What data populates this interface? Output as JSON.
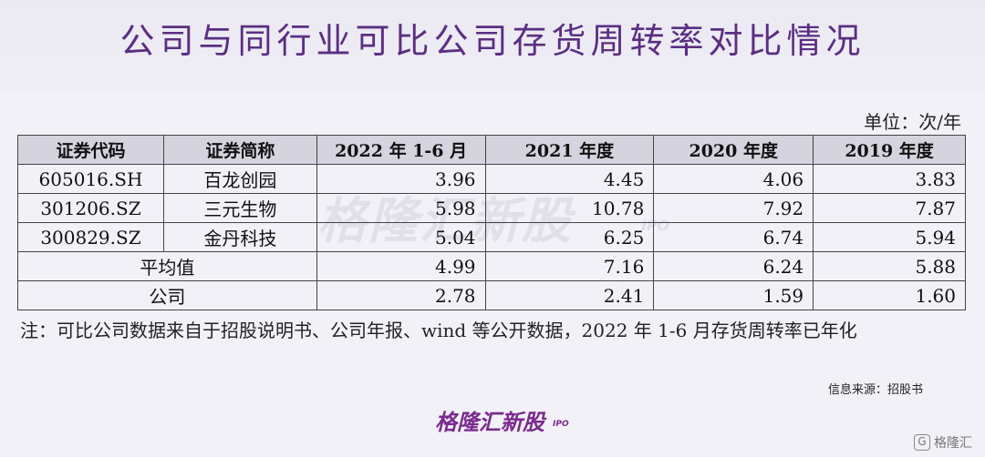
{
  "title": "公司与同行业可比公司存货周转率对比情况",
  "unit": "单位：次/年",
  "table": {
    "headers": [
      "证券代码",
      "证券简称",
      "2022 年 1-6 月",
      "2021 年度",
      "2020 年度",
      "2019 年度"
    ],
    "rows": [
      {
        "code": "605016.SH",
        "name": "百龙创园",
        "v1": "3.96",
        "v2": "4.45",
        "v3": "4.06",
        "v4": "3.83"
      },
      {
        "code": "301206.SZ",
        "name": "三元生物",
        "v1": "5.98",
        "v2": "10.78",
        "v3": "7.92",
        "v4": "7.87"
      },
      {
        "code": "300829.SZ",
        "name": "金丹科技",
        "v1": "5.04",
        "v2": "6.25",
        "v3": "6.74",
        "v4": "5.94"
      }
    ],
    "summary": [
      {
        "label": "平均值",
        "v1": "4.99",
        "v2": "7.16",
        "v3": "6.24",
        "v4": "5.88"
      },
      {
        "label": "公司",
        "v1": "2.78",
        "v2": "2.41",
        "v3": "1.59",
        "v4": "1.60"
      }
    ]
  },
  "note": "注：可比公司数据来自于招股说明书、公司年报、wind 等公开数据，2022 年 1-6 月存货周转率已年化",
  "source": "信息来源：招股书",
  "watermark": {
    "text": "格隆汇新股",
    "ipo": "IPO"
  },
  "logo": {
    "text": "格隆汇新股",
    "ipo": "IPO"
  },
  "corner_brand": {
    "icon": "G",
    "text": "格隆汇"
  }
}
